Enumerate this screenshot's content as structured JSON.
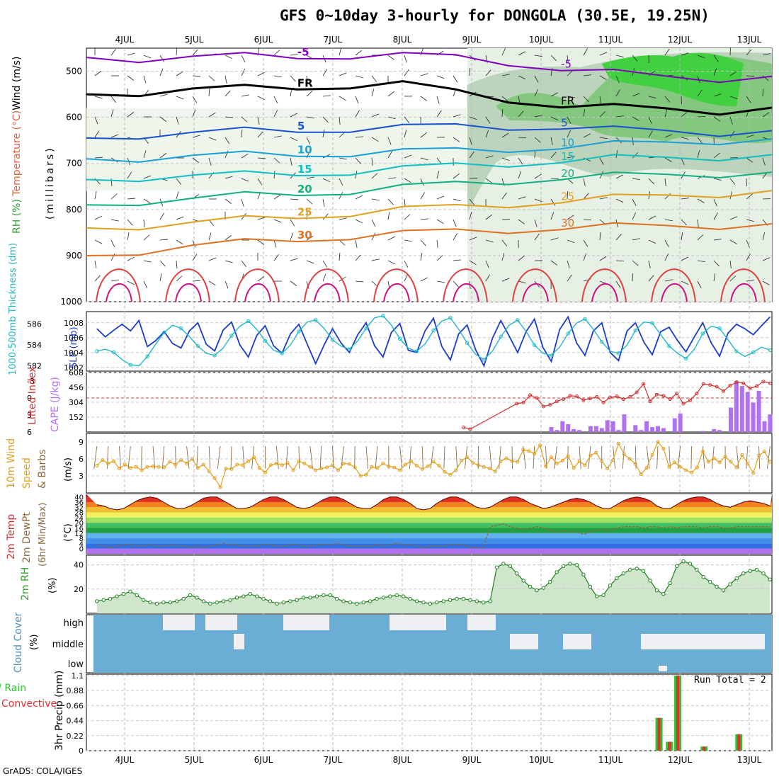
{
  "title": "GFS 0~10day 3-hourly for DONGOLA (30.5E, 19.25N)",
  "footer": "GrADS: COLA/IGES",
  "run_total": "Run Total = 2",
  "chart_data": [
    {
      "type": "contour",
      "panel": "upper-air",
      "x_ticks": [
        "4JUL",
        "5JUL",
        "6JUL",
        "7JUL",
        "8JUL",
        "9JUL",
        "10JUL",
        "11JUL",
        "12JUL",
        "13JUL"
      ],
      "ylabel_parts": [
        "RH (%)",
        "Temperature (°C)",
        "Wind (m/s)",
        "(millibars)"
      ],
      "y_ticks": [
        500,
        600,
        700,
        800,
        900,
        1000
      ],
      "ylim": [
        1000,
        450
      ],
      "isotherms": [
        {
          "label": "-5",
          "color": "#8000c0",
          "pressure": [
            470,
            472,
            470,
            468,
            468,
            466,
            466,
            470,
            480,
            495,
            505,
            512,
            515,
            512
          ]
        },
        {
          "label": "FR",
          "color": "#000000",
          "pressure": [
            550,
            545,
            540,
            538,
            535,
            530,
            528,
            545,
            560,
            575,
            580,
            582,
            585,
            580
          ]
        },
        {
          "label": "5",
          "color": "#1a50d0",
          "pressure": [
            645,
            638,
            635,
            630,
            628,
            625,
            622,
            620,
            620,
            622,
            628,
            630,
            632,
            630
          ]
        },
        {
          "label": "10",
          "color": "#1aa0d8",
          "pressure": [
            690,
            688,
            685,
            682,
            680,
            678,
            675,
            672,
            668,
            665,
            660,
            655,
            650,
            648
          ]
        },
        {
          "label": "15",
          "color": "#10c0c0",
          "pressure": [
            735,
            730,
            728,
            725,
            722,
            718,
            712,
            705,
            700,
            695,
            690,
            688,
            685,
            682
          ]
        },
        {
          "label": "20",
          "color": "#10b080",
          "pressure": [
            790,
            782,
            778,
            770,
            765,
            760,
            752,
            745,
            738,
            732,
            728,
            725,
            722,
            720
          ]
        },
        {
          "label": "25",
          "color": "#e0a020",
          "pressure": [
            840,
            835,
            830,
            822,
            815,
            808,
            800,
            795,
            788,
            782,
            776,
            770,
            765,
            760
          ]
        },
        {
          "label": "30",
          "color": "#e07020",
          "pressure": [
            900,
            890,
            880,
            872,
            865,
            858,
            852,
            848,
            844,
            840,
            838,
            836,
            834,
            832
          ]
        }
      ],
      "contour_labels": [
        "-5",
        "FR",
        "5",
        "10",
        "15",
        "20",
        "25",
        "30"
      ]
    },
    {
      "type": "line",
      "panel": "thickness-slp",
      "ylabel_left": "1000-500mb Thickness (dm)",
      "ylabel_right": "SLP (mb)",
      "left_ticks": [
        582,
        584,
        586
      ],
      "right_ticks": [
        1002,
        1004,
        1006,
        1008
      ],
      "series": [
        {
          "name": "SLP (mb)",
          "color": "#1a3cc8",
          "values": [
            1007.2,
            1006.1,
            1007.0,
            1007.8,
            1006.9,
            1008.3,
            1004.8,
            1005.6,
            1006.8,
            1005.2,
            1004.6,
            1006.9,
            1008.0,
            1005.1,
            1004.2,
            1007.0,
            1008.1,
            1005.0,
            1003.4,
            1006.3,
            1007.6,
            1004.9,
            1003.9,
            1006.5,
            1007.8,
            1005.1,
            1002.5,
            1005.0,
            1007.2,
            1005.3,
            1004.0,
            1006.4,
            1008.0,
            1004.9,
            1003.4,
            1006.7,
            1007.9,
            1004.3,
            1004.0,
            1006.9,
            1008.6,
            1004.8,
            1003.0,
            1006.5,
            1007.7,
            1004.4,
            1002.2,
            1005.9,
            1008.3,
            1006.2,
            1004.0,
            1006.8,
            1008.5,
            1004.7,
            1002.8,
            1007.1,
            1008.8,
            1005.3,
            1003.6,
            1006.9,
            1008.0,
            1004.0,
            1002.9,
            1006.9,
            1008.0,
            1005.4,
            1003.7,
            1006.8,
            1007.4,
            1005.6,
            1004.1,
            1006.1,
            1008.0,
            1005.3,
            1003.5,
            1006.6,
            1007.8,
            1007.2,
            1006.4,
            1007.6,
            1008.8
          ]
        },
        {
          "name": "1000-500mb Thickness (dm)",
          "color": "#22b8c8",
          "values": [
            583.4,
            583.6,
            583.3,
            582.6,
            582.1,
            582.0,
            582.9,
            584.1,
            585.2,
            585.9,
            585.6,
            584.8,
            583.9,
            583.2,
            583.0,
            583.7,
            584.9,
            585.8,
            586.3,
            585.5,
            584.4,
            583.5,
            583.2,
            584.0,
            585.3,
            586.2,
            586.4,
            585.6,
            584.5,
            583.9,
            583.6,
            584.4,
            585.6,
            586.6,
            586.8,
            585.9,
            584.6,
            583.7,
            583.4,
            584.1,
            585.4,
            586.3,
            586.6,
            585.5,
            584.2,
            583.1,
            582.6,
            583.4,
            584.8,
            585.9,
            586.4,
            585.3,
            584.0,
            583.2,
            583.0,
            583.8,
            585.1,
            586.1,
            586.5,
            585.5,
            584.3,
            583.4,
            583.2,
            584.0,
            585.4,
            586.2,
            586.1,
            585.0,
            583.9,
            583.2,
            582.7,
            583.6,
            585.1,
            585.8,
            585.6,
            584.5,
            583.4,
            582.9,
            583.3,
            583.8,
            583.5
          ]
        }
      ]
    },
    {
      "type": "bar+line",
      "panel": "stability",
      "ylabel_left": "Lifted Index",
      "ylabel_right": "CAPE (J/kg)",
      "left_ticks": [
        -3,
        0,
        3,
        6
      ],
      "right_ticks": [
        152,
        304,
        456,
        608
      ],
      "cape_values": [
        0,
        0,
        0,
        0,
        0,
        0,
        0,
        0,
        0,
        0,
        0,
        0,
        0,
        0,
        0,
        0,
        0,
        0,
        0,
        0,
        0,
        0,
        0,
        0,
        0,
        0,
        0,
        0,
        0,
        0,
        0,
        0,
        0,
        0,
        0,
        0,
        0,
        0,
        0,
        0,
        0,
        0,
        0,
        0,
        0,
        0,
        0,
        0,
        0,
        0,
        0,
        0,
        0,
        0,
        0,
        0,
        0,
        0,
        0,
        0,
        0,
        0,
        0,
        0,
        0,
        0,
        0,
        0,
        0,
        0,
        0,
        0,
        0,
        0,
        0,
        0,
        0,
        0,
        0,
        0,
        0,
        50,
        20,
        110,
        80,
        30,
        20,
        0,
        60,
        60,
        40,
        120,
        110,
        20,
        180,
        0,
        70,
        20,
        110,
        50,
        60,
        40,
        0,
        140,
        190,
        0,
        0,
        0,
        10,
        0,
        30,
        20,
        0,
        250,
        520,
        470,
        410,
        300,
        420,
        110,
        180
      ],
      "lifted_index": [
        6,
        6,
        6,
        6,
        6,
        6,
        6,
        6,
        6,
        6,
        6,
        6,
        6,
        6,
        6,
        6,
        6,
        6,
        6,
        6,
        6,
        6,
        6,
        6,
        6,
        6,
        6,
        6,
        6,
        6,
        6,
        6,
        6,
        6,
        6,
        6,
        6,
        6,
        6,
        6,
        6,
        6,
        6,
        6,
        6,
        6,
        6,
        6,
        6,
        6,
        6,
        6,
        6,
        6,
        6,
        5.2,
        5.5,
        6,
        6,
        6,
        6,
        6,
        6,
        1.0,
        0.8,
        -0.5,
        0.0,
        1.5,
        1.2,
        0.6,
        0.2,
        -0.4,
        -0.3,
        0.4,
        0.1,
        -0.2,
        0.8,
        -0.1,
        -0.3,
        0.2,
        -0.2,
        -1.0,
        -2.5,
        0.6,
        -0.6,
        -0.4,
        0.2,
        -0.8,
        1.0,
        0.4,
        -0.8,
        -2.5,
        -2.3,
        -2.0,
        -1.2,
        -2.2,
        -2.8,
        -2.6,
        -1.7,
        -2.1,
        -2.9,
        -2.6
      ]
    },
    {
      "type": "line",
      "panel": "wind10m",
      "ylabel": "10m Wind Speed & Barbs (m/s)",
      "y_ticks": [
        3,
        6,
        9
      ],
      "ylim": [
        0,
        10.5
      ],
      "values": [
        4.8,
        5.8,
        5.2,
        5.6,
        4.3,
        5.0,
        4.4,
        4.6,
        4.0,
        4.6,
        4.7,
        4.6,
        4.5,
        5.5,
        5.0,
        5.8,
        5.2,
        6.0,
        4.4,
        5.0,
        3.8,
        2.6,
        1.0,
        4.3,
        4.2,
        5.0,
        4.9,
        5.6,
        6.3,
        4.4,
        3.6,
        4.9,
        5.2,
        4.9,
        5.3,
        4.0,
        5.6,
        5.2,
        4.6,
        4.0,
        4.3,
        4.5,
        4.9,
        4.0,
        5.2,
        5.1,
        4.5,
        3.0,
        3.2,
        4.6,
        4.4,
        5.2,
        4.7,
        4.5,
        4.0,
        5.0,
        5.6,
        4.8,
        4.2,
        4.7,
        5.5,
        4.8,
        3.7,
        3.2,
        4.0,
        5.7,
        6.3,
        5.3,
        4.9,
        4.6,
        4.3,
        3.8,
        5.6,
        6.1,
        5.6,
        5.5,
        7.6,
        7.4,
        6.9,
        8.4,
        4.7,
        6.3,
        5.2,
        5.7,
        6.5,
        4.4,
        5.6,
        4.9,
        6.6,
        7.1,
        5.6,
        4.3,
        5.8,
        8.7,
        6.8,
        6.0,
        5.1,
        3.3,
        4.4,
        6.7,
        9.0,
        7.8,
        4.6,
        5.4,
        4.6,
        4.0,
        3.6,
        4.5,
        7.3,
        5.5,
        6.1,
        5.4,
        6.4,
        5.5,
        4.5,
        6.7,
        5.2,
        3.5,
        6.6,
        7.3,
        5.5
      ]
    },
    {
      "type": "area",
      "panel": "temp2m",
      "ylabel": "2m Temp 2m DewPt (6hr Min/Max) (°C)",
      "y_ticks": [
        0,
        4,
        8,
        12,
        16,
        20,
        24,
        28,
        32,
        36,
        40
      ],
      "ylim": [
        -4,
        42
      ],
      "temp_max": [
        34,
        33,
        31,
        30,
        31,
        34,
        37,
        39,
        40,
        39,
        36,
        33,
        31,
        31,
        33,
        36,
        39,
        40,
        40,
        37,
        34,
        31,
        31,
        32,
        35,
        38,
        40,
        40,
        38,
        35,
        32,
        31,
        32,
        35,
        38,
        40,
        40,
        38,
        35,
        32,
        31,
        31,
        34,
        38,
        40,
        40,
        38,
        35,
        31,
        30,
        31,
        35,
        38,
        40,
        40,
        38,
        35,
        32,
        31,
        32,
        35,
        38,
        40,
        40,
        38,
        35,
        33,
        31,
        32,
        34,
        36,
        38,
        39,
        38,
        36,
        33,
        31,
        31,
        34,
        37,
        39,
        40,
        39,
        37,
        33,
        31,
        31,
        34,
        37,
        39,
        40,
        40,
        38,
        35,
        33,
        32,
        34,
        36,
        37,
        36,
        35,
        33
      ],
      "dewpoint": [
        3,
        2,
        1,
        2,
        3,
        3,
        2,
        2,
        3,
        2,
        2,
        3,
        2,
        2,
        1,
        2,
        1,
        2,
        3,
        4,
        3,
        3,
        2,
        2,
        2,
        3,
        3,
        2,
        2,
        3,
        3,
        2,
        2,
        3,
        3,
        3,
        4,
        3,
        2,
        2,
        2,
        2,
        3,
        2,
        3,
        4,
        3,
        3,
        2,
        1,
        2,
        2,
        2,
        3,
        3,
        3,
        1,
        1,
        1,
        17,
        18,
        19,
        17,
        16,
        15,
        16,
        17,
        16,
        14,
        13,
        14,
        13,
        13,
        11,
        13,
        14,
        15,
        14,
        16,
        17,
        17,
        17,
        16,
        17,
        17,
        16,
        17,
        16,
        17,
        17,
        17,
        16,
        17,
        17,
        16,
        16,
        17,
        17,
        17,
        17,
        17,
        17
      ]
    },
    {
      "type": "area",
      "panel": "rh2m",
      "ylabel": "2m RH (%)",
      "y_ticks": [
        20,
        40
      ],
      "ylim": [
        0,
        48
      ],
      "values": [
        10,
        11,
        12,
        14,
        16,
        18,
        15,
        11,
        9,
        8,
        9,
        9,
        10,
        12,
        15,
        13,
        10,
        8,
        9,
        10,
        11,
        13,
        14,
        16,
        14,
        12,
        10,
        8,
        9,
        10,
        11,
        13,
        13,
        14,
        15,
        15,
        12,
        10,
        9,
        8,
        9,
        10,
        12,
        13,
        14,
        15,
        14,
        12,
        10,
        9,
        8,
        9,
        10,
        11,
        12,
        12,
        11,
        10,
        9,
        10,
        38,
        41,
        39,
        33,
        27,
        22,
        19,
        21,
        26,
        34,
        39,
        41,
        40,
        32,
        22,
        14,
        15,
        23,
        29,
        33,
        36,
        37,
        35,
        27,
        19,
        16,
        25,
        39,
        43,
        41,
        36,
        30,
        26,
        22,
        19,
        24,
        29,
        33,
        35,
        36,
        33,
        28
      ]
    },
    {
      "type": "area",
      "panel": "cloud",
      "ylabel": "Cloud Cover (%)",
      "y_ticks": [
        "high",
        "middle",
        "low"
      ]
    },
    {
      "type": "bar",
      "panel": "precip",
      "ylabel": "3hr Precip (mm)",
      "legend": [
        "Total / Rain",
        "Convective"
      ],
      "y_ticks": [
        0,
        0.22,
        0.44,
        0.66,
        0.88,
        1.1
      ],
      "ylim": [
        0,
        1.12
      ],
      "bars": [
        {
          "day": 11.7,
          "total": 0.48,
          "convective": 0.48
        },
        {
          "day": 11.85,
          "total": 0.13,
          "convective": 0.13
        },
        {
          "day": 11.97,
          "total": 1.1,
          "convective": 1.1
        },
        {
          "day": 12.35,
          "total": 0.06,
          "convective": 0.06
        },
        {
          "day": 12.85,
          "total": 0.24,
          "convective": 0.24
        }
      ]
    }
  ]
}
